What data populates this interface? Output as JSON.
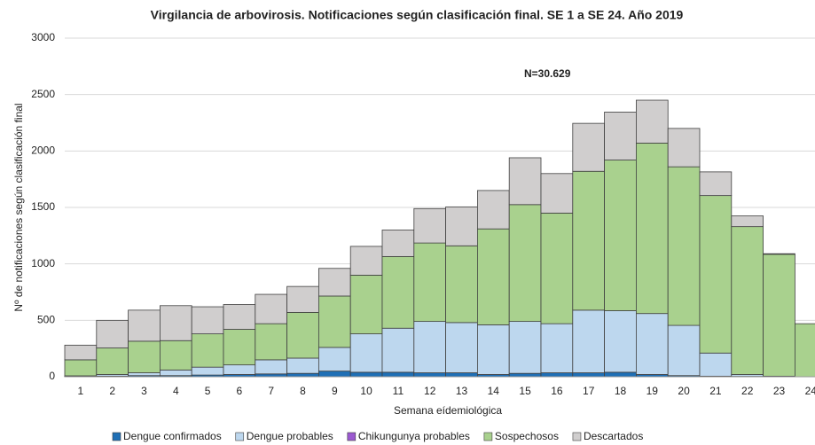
{
  "chart_data": {
    "type": "stacked_bar",
    "title": "Virgilancia de arbovirosis. Notificaciones según clasificación final. SE 1 a SE 24. Año 2019",
    "annotation": "N=30.629",
    "x_label": "Semana eídemiológica",
    "y_label": "Nº de notificaciones según clasificación final",
    "categories": [
      "1",
      "2",
      "3",
      "4",
      "5",
      "6",
      "7",
      "8",
      "9",
      "10",
      "11",
      "12",
      "13",
      "14",
      "15",
      "16",
      "17",
      "18",
      "19",
      "20",
      "21",
      "22",
      "23",
      "24"
    ],
    "series": [
      {
        "name": "Dengue confirmados",
        "color": "#1f6fb5",
        "values": [
          3,
          5,
          10,
          10,
          15,
          20,
          25,
          30,
          50,
          40,
          40,
          35,
          35,
          20,
          30,
          35,
          35,
          40,
          20,
          10,
          5,
          3,
          2,
          0
        ]
      },
      {
        "name": "Dengue probables",
        "color": "#bdd7ee",
        "values": [
          5,
          15,
          25,
          50,
          70,
          85,
          125,
          135,
          210,
          340,
          390,
          455,
          445,
          440,
          460,
          435,
          555,
          545,
          540,
          445,
          205,
          17,
          3,
          0
        ]
      },
      {
        "name": "Chikungunya probables",
        "color": "#9b59d0",
        "values": [
          0,
          0,
          0,
          0,
          0,
          0,
          0,
          0,
          0,
          0,
          0,
          0,
          0,
          0,
          0,
          0,
          0,
          0,
          0,
          0,
          0,
          0,
          0,
          0
        ]
      },
      {
        "name": "Sospechosos",
        "color": "#a9d18e",
        "values": [
          142,
          235,
          280,
          260,
          295,
          315,
          320,
          405,
          455,
          520,
          635,
          695,
          680,
          850,
          1035,
          980,
          1230,
          1335,
          1510,
          1405,
          1395,
          1310,
          1080,
          470
        ]
      },
      {
        "name": "Descartados",
        "color": "#d0cece",
        "values": [
          130,
          245,
          275,
          310,
          240,
          220,
          260,
          230,
          245,
          255,
          235,
          305,
          345,
          340,
          415,
          350,
          425,
          425,
          380,
          340,
          210,
          95,
          5,
          0
        ]
      }
    ],
    "ylim": [
      0,
      3000
    ],
    "yticks": [
      0,
      500,
      1000,
      1500,
      2000,
      2500,
      3000
    ],
    "grid": true
  }
}
